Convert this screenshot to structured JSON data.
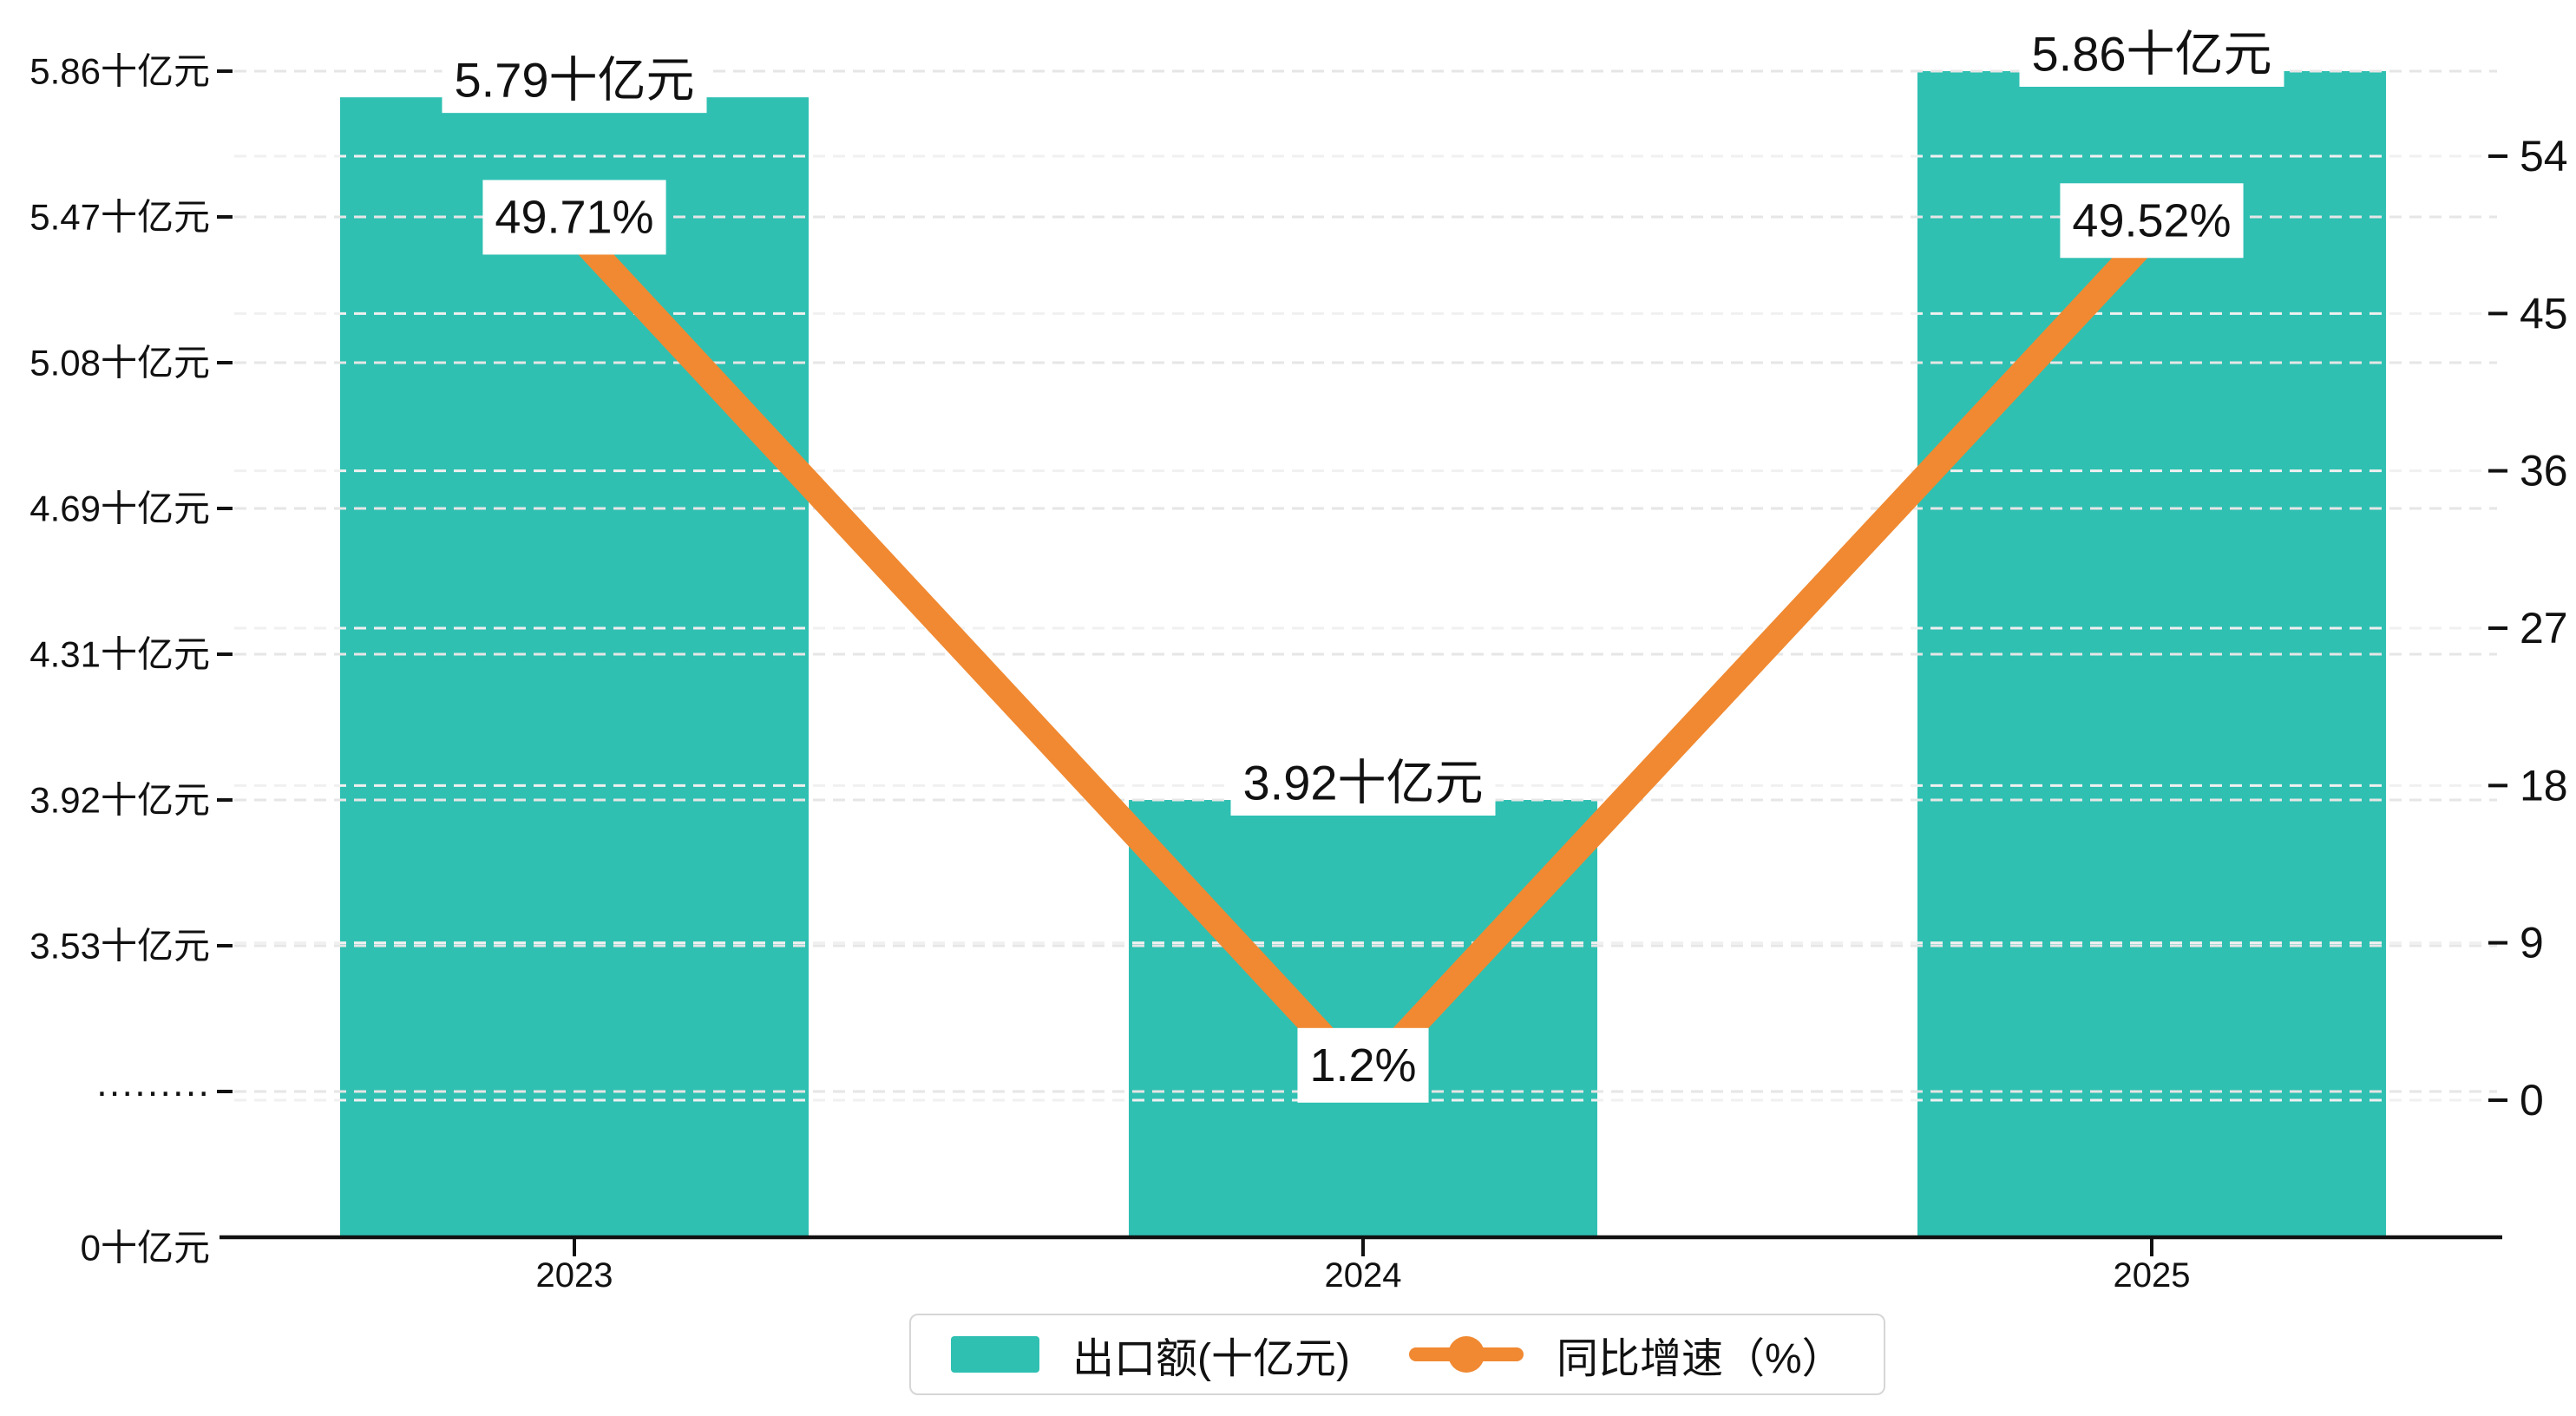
{
  "chart_data": {
    "type": "bar",
    "subtype": "bar-line-combo",
    "categories": [
      "2023",
      "2024",
      "2025"
    ],
    "series": [
      {
        "name": "出口额(十亿元)",
        "type": "bar",
        "axis": "left",
        "color": "#2FC0B2",
        "values": [
          5.79,
          3.92,
          5.86
        ],
        "data_labels": [
          "5.79十亿元",
          "3.92十亿元",
          "5.86十亿元"
        ]
      },
      {
        "name": "同比增速（%）",
        "type": "line",
        "axis": "right",
        "color": "#F08932",
        "values": [
          49.71,
          1.2,
          49.52
        ],
        "data_labels": [
          "49.71%",
          "1.2%",
          "49.52%"
        ]
      }
    ],
    "left_axis": {
      "tick_labels": [
        "0十亿元",
        "·········",
        "3.53十亿元",
        "3.92十亿元",
        "4.31十亿元",
        "4.69十亿元",
        "5.08十亿元",
        "5.47十亿元",
        "5.86十亿元"
      ],
      "tick_values": [
        0,
        null,
        3.53,
        3.92,
        4.31,
        4.69,
        5.08,
        5.47,
        5.86
      ],
      "axis_break": true
    },
    "right_axis": {
      "tick_labels": [
        "0",
        "9",
        "18",
        "27",
        "36",
        "45",
        "54"
      ],
      "range": [
        0,
        54
      ]
    },
    "grid": true,
    "legend_position": "bottom-center",
    "gridline_color_major": "#e6e6e6",
    "gridline_color_minor": "#f0f0f0",
    "axis_color": "#111111"
  },
  "legend": {
    "items": [
      {
        "label": "出口额(十亿元)",
        "marker": "bar-swatch",
        "color": "#2FC0B2"
      },
      {
        "label": "同比增速（%）",
        "marker": "line-dot",
        "color": "#F08932"
      }
    ]
  }
}
